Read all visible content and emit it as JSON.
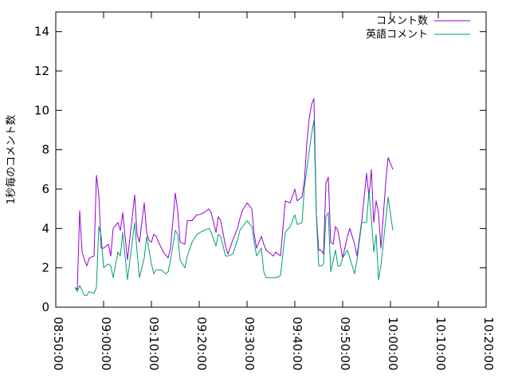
{
  "chart_data": {
    "type": "line",
    "title": "",
    "xlabel": "",
    "ylabel": "1秒毎のコメント数",
    "xlim": [
      "08:50:00",
      "10:20:00"
    ],
    "ylim": [
      0,
      15
    ],
    "x_ticks": [
      "08:50:00",
      "09:00:00",
      "09:10:00",
      "09:20:00",
      "09:30:00",
      "09:40:00",
      "09:50:00",
      "10:00:00",
      "10:10:00",
      "10:20:00"
    ],
    "y_ticks": [
      0,
      2,
      4,
      6,
      8,
      10,
      12,
      14
    ],
    "grid": false,
    "legend_position": "top-right",
    "series": [
      {
        "name": "コメント数",
        "color": "#9400d3",
        "points": [
          [
            "08:54:00",
            1.0
          ],
          [
            "08:54:30",
            0.9
          ],
          [
            "08:55:00",
            4.9
          ],
          [
            "08:55:30",
            2.8
          ],
          [
            "08:56:00",
            2.4
          ],
          [
            "08:56:30",
            2.1
          ],
          [
            "08:57:00",
            2.5
          ],
          [
            "08:58:00",
            2.6
          ],
          [
            "08:58:30",
            6.7
          ],
          [
            "08:59:00",
            5.7
          ],
          [
            "08:59:30",
            3.0
          ],
          [
            "09:00:00",
            3.0
          ],
          [
            "09:01:00",
            3.2
          ],
          [
            "09:01:30",
            2.6
          ],
          [
            "09:02:00",
            4.0
          ],
          [
            "09:03:00",
            4.3
          ],
          [
            "09:03:30",
            3.9
          ],
          [
            "09:04:00",
            4.8
          ],
          [
            "09:05:00",
            2.4
          ],
          [
            "09:06:00",
            4.6
          ],
          [
            "09:06:30",
            5.7
          ],
          [
            "09:07:00",
            3.7
          ],
          [
            "09:07:30",
            3.3
          ],
          [
            "09:08:30",
            5.3
          ],
          [
            "09:09:00",
            3.8
          ],
          [
            "09:09:30",
            3.4
          ],
          [
            "09:10:00",
            3.3
          ],
          [
            "09:10:30",
            3.7
          ],
          [
            "09:11:00",
            3.6
          ],
          [
            "09:11:30",
            3.3
          ],
          [
            "09:12:30",
            2.8
          ],
          [
            "09:13:30",
            2.5
          ],
          [
            "09:14:00",
            3.0
          ],
          [
            "09:15:00",
            5.8
          ],
          [
            "09:15:30",
            4.9
          ],
          [
            "09:16:00",
            3.3
          ],
          [
            "09:17:00",
            3.2
          ],
          [
            "09:17:30",
            4.4
          ],
          [
            "09:18:30",
            4.4
          ],
          [
            "09:19:30",
            4.7
          ],
          [
            "09:20:00",
            4.7
          ],
          [
            "09:21:00",
            4.8
          ],
          [
            "09:22:00",
            5.0
          ],
          [
            "09:22:30",
            4.8
          ],
          [
            "09:23:30",
            3.8
          ],
          [
            "09:24:00",
            4.6
          ],
          [
            "09:24:30",
            4.4
          ],
          [
            "09:25:30",
            3.1
          ],
          [
            "09:26:00",
            2.7
          ],
          [
            "09:27:00",
            3.4
          ],
          [
            "09:28:00",
            4.0
          ],
          [
            "09:28:30",
            4.5
          ],
          [
            "09:29:00",
            4.9
          ],
          [
            "09:30:00",
            5.3
          ],
          [
            "09:31:00",
            5.0
          ],
          [
            "09:31:30",
            3.7
          ],
          [
            "09:32:00",
            3.0
          ],
          [
            "09:33:00",
            3.6
          ],
          [
            "09:33:30",
            3.2
          ],
          [
            "09:34:00",
            2.9
          ],
          [
            "09:35:00",
            2.7
          ],
          [
            "09:35:30",
            2.6
          ],
          [
            "09:36:00",
            2.8
          ],
          [
            "09:37:00",
            2.6
          ],
          [
            "09:38:00",
            5.4
          ],
          [
            "09:39:00",
            5.3
          ],
          [
            "09:40:00",
            6.0
          ],
          [
            "09:40:30",
            5.4
          ],
          [
            "09:41:30",
            5.6
          ],
          [
            "09:42:00",
            6.4
          ],
          [
            "09:42:30",
            8.3
          ],
          [
            "09:43:00",
            9.6
          ],
          [
            "09:43:30",
            10.3
          ],
          [
            "09:44:00",
            10.6
          ],
          [
            "09:44:30",
            4.7
          ],
          [
            "09:45:00",
            2.9
          ],
          [
            "09:45:30",
            2.9
          ],
          [
            "09:46:00",
            2.7
          ],
          [
            "09:46:30",
            6.3
          ],
          [
            "09:47:00",
            6.6
          ],
          [
            "09:47:30",
            3.3
          ],
          [
            "09:48:00",
            3.2
          ],
          [
            "09:48:30",
            4.1
          ],
          [
            "09:49:00",
            3.9
          ],
          [
            "09:50:00",
            2.5
          ],
          [
            "09:51:00",
            3.6
          ],
          [
            "09:51:30",
            4.0
          ],
          [
            "09:52:30",
            3.2
          ],
          [
            "09:53:00",
            2.6
          ],
          [
            "09:54:00",
            4.4
          ],
          [
            "09:55:00",
            6.8
          ],
          [
            "09:55:30",
            5.6
          ],
          [
            "09:56:00",
            7.0
          ],
          [
            "09:56:30",
            4.3
          ],
          [
            "09:57:00",
            5.4
          ],
          [
            "09:57:30",
            4.8
          ],
          [
            "09:58:00",
            3.0
          ],
          [
            "09:59:00",
            6.3
          ],
          [
            "09:59:30",
            7.6
          ],
          [
            "10:00:30",
            7.0
          ]
        ]
      },
      {
        "name": "英語コメント",
        "color": "#009e73",
        "points": [
          [
            "08:54:00",
            1.0
          ],
          [
            "08:54:30",
            0.8
          ],
          [
            "08:55:00",
            1.1
          ],
          [
            "08:56:00",
            0.6
          ],
          [
            "08:56:30",
            0.6
          ],
          [
            "08:57:00",
            0.8
          ],
          [
            "08:58:00",
            0.7
          ],
          [
            "08:58:30",
            1.0
          ],
          [
            "08:59:00",
            4.1
          ],
          [
            "08:59:30",
            3.6
          ],
          [
            "09:00:00",
            2.0
          ],
          [
            "09:01:00",
            2.2
          ],
          [
            "09:01:30",
            2.1
          ],
          [
            "09:02:00",
            1.5
          ],
          [
            "09:03:00",
            2.8
          ],
          [
            "09:03:30",
            2.6
          ],
          [
            "09:04:00",
            3.8
          ],
          [
            "09:05:00",
            1.4
          ],
          [
            "09:06:30",
            4.3
          ],
          [
            "09:07:00",
            2.8
          ],
          [
            "09:07:30",
            1.5
          ],
          [
            "09:08:30",
            2.5
          ],
          [
            "09:09:00",
            3.6
          ],
          [
            "09:09:30",
            2.9
          ],
          [
            "09:10:00",
            2.2
          ],
          [
            "09:10:30",
            1.7
          ],
          [
            "09:11:00",
            1.9
          ],
          [
            "09:12:00",
            1.9
          ],
          [
            "09:13:00",
            1.7
          ],
          [
            "09:13:30",
            1.8
          ],
          [
            "09:14:00",
            2.4
          ],
          [
            "09:15:00",
            3.9
          ],
          [
            "09:15:30",
            3.7
          ],
          [
            "09:16:00",
            2.4
          ],
          [
            "09:17:00",
            2.0
          ],
          [
            "09:17:30",
            2.6
          ],
          [
            "09:18:30",
            3.3
          ],
          [
            "09:19:30",
            3.7
          ],
          [
            "09:21:00",
            3.9
          ],
          [
            "09:22:00",
            4.0
          ],
          [
            "09:22:30",
            3.8
          ],
          [
            "09:23:30",
            3.1
          ],
          [
            "09:24:00",
            3.7
          ],
          [
            "09:24:30",
            3.6
          ],
          [
            "09:25:30",
            2.6
          ],
          [
            "09:26:00",
            2.6
          ],
          [
            "09:27:00",
            2.7
          ],
          [
            "09:28:00",
            3.4
          ],
          [
            "09:28:30",
            3.9
          ],
          [
            "09:30:00",
            4.4
          ],
          [
            "09:31:00",
            4.1
          ],
          [
            "09:31:30",
            3.3
          ],
          [
            "09:32:00",
            2.6
          ],
          [
            "09:33:00",
            3.0
          ],
          [
            "09:33:30",
            1.8
          ],
          [
            "09:34:00",
            1.5
          ],
          [
            "09:35:00",
            1.5
          ],
          [
            "09:36:00",
            1.5
          ],
          [
            "09:37:00",
            1.6
          ],
          [
            "09:38:00",
            3.8
          ],
          [
            "09:39:00",
            4.1
          ],
          [
            "09:40:00",
            4.7
          ],
          [
            "09:40:30",
            4.2
          ],
          [
            "09:41:30",
            4.3
          ],
          [
            "09:42:00",
            6.1
          ],
          [
            "09:43:00",
            7.9
          ],
          [
            "09:43:30",
            8.8
          ],
          [
            "09:44:00",
            9.5
          ],
          [
            "09:44:30",
            4.6
          ],
          [
            "09:45:00",
            2.1
          ],
          [
            "09:45:30",
            2.1
          ],
          [
            "09:46:00",
            2.2
          ],
          [
            "09:46:30",
            4.6
          ],
          [
            "09:47:00",
            4.8
          ],
          [
            "09:47:30",
            1.8
          ],
          [
            "09:48:30",
            2.9
          ],
          [
            "09:49:00",
            2.1
          ],
          [
            "09:49:30",
            2.1
          ],
          [
            "09:50:00",
            2.5
          ],
          [
            "09:51:00",
            2.9
          ],
          [
            "09:51:30",
            2.5
          ],
          [
            "09:52:30",
            1.7
          ],
          [
            "09:53:00",
            2.4
          ],
          [
            "09:54:00",
            4.3
          ],
          [
            "09:55:00",
            4.3
          ],
          [
            "09:55:30",
            5.9
          ],
          [
            "09:56:00",
            4.5
          ],
          [
            "09:56:30",
            2.8
          ],
          [
            "09:57:00",
            3.7
          ],
          [
            "09:57:30",
            1.4
          ],
          [
            "09:58:00",
            2.1
          ],
          [
            "09:59:00",
            4.4
          ],
          [
            "09:59:30",
            5.6
          ],
          [
            "10:00:30",
            3.9
          ]
        ]
      }
    ]
  }
}
